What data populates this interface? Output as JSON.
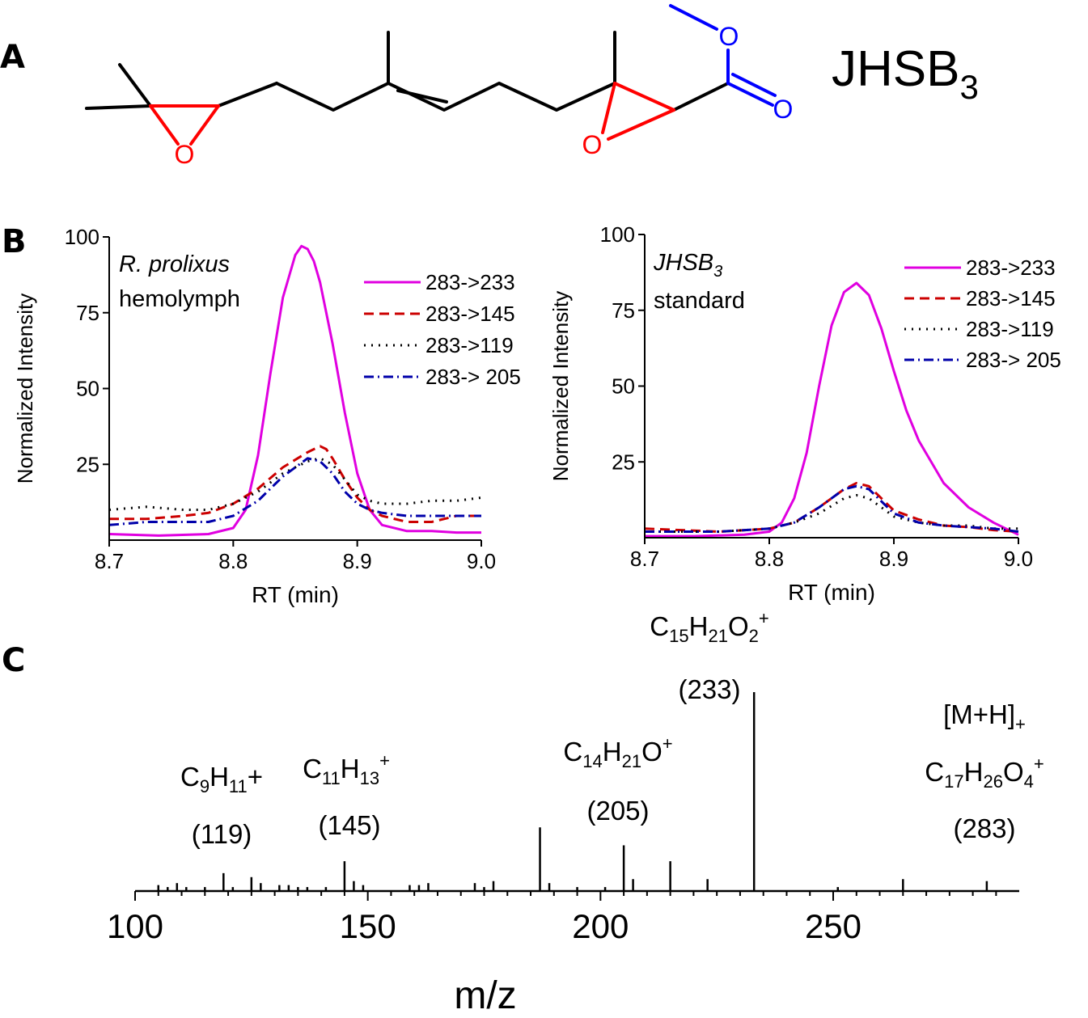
{
  "panels": {
    "a": {
      "letter": "A",
      "compound_name": "JHSB",
      "compound_subscript": "3",
      "atom_labels": [
        "O",
        "O",
        "O",
        "O"
      ],
      "colors": {
        "bonds": "#000000",
        "epoxide": "#ff0000",
        "ester": "#0000ff"
      }
    },
    "b": {
      "letter": "B"
    },
    "c": {
      "letter": "C"
    }
  },
  "chart_data": [
    {
      "id": "hemolymph",
      "type": "line",
      "annotation_line1": "R. prolixus",
      "annotation_line2": "hemolymph",
      "xlabel": "RT (min)",
      "ylabel": "Normalized Intensity",
      "xlim": [
        8.7,
        9.0
      ],
      "ylim": [
        0,
        100
      ],
      "x_ticks": [
        "8.7",
        "8.8",
        "8.9",
        "9.0"
      ],
      "y_ticks": [
        "25",
        "50",
        "75",
        "100"
      ],
      "legend_position": "top-right",
      "series": [
        {
          "name": "283->233",
          "color": "#e000e0",
          "dash": "solid",
          "x": [
            8.7,
            8.74,
            8.78,
            8.8,
            8.81,
            8.82,
            8.83,
            8.84,
            8.85,
            8.855,
            8.86,
            8.865,
            8.87,
            8.88,
            8.89,
            8.9,
            8.91,
            8.92,
            8.94,
            8.96,
            8.98,
            9.0
          ],
          "y": [
            2,
            1.5,
            2,
            4,
            10,
            28,
            55,
            80,
            94,
            97,
            96,
            92,
            85,
            65,
            42,
            22,
            10,
            5,
            3,
            3,
            2.5,
            2.5
          ]
        },
        {
          "name": "283->145",
          "color": "#cc0000",
          "dash": "dashed",
          "x": [
            8.7,
            8.73,
            8.76,
            8.78,
            8.8,
            8.82,
            8.84,
            8.86,
            8.87,
            8.875,
            8.88,
            8.89,
            8.9,
            8.91,
            8.92,
            8.94,
            8.96,
            8.98,
            9.0
          ],
          "y": [
            7,
            7,
            8,
            9,
            12,
            17,
            24,
            29,
            31,
            30,
            27,
            20,
            14,
            10,
            8,
            6,
            6,
            8,
            8
          ]
        },
        {
          "name": "283->119",
          "color": "#000000",
          "dash": "dotted",
          "x": [
            8.7,
            8.73,
            8.76,
            8.78,
            8.8,
            8.82,
            8.84,
            8.86,
            8.87,
            8.88,
            8.89,
            8.9,
            8.91,
            8.92,
            8.94,
            8.96,
            8.98,
            9.0
          ],
          "y": [
            10,
            11,
            10,
            10,
            12,
            16,
            22,
            26,
            27,
            25,
            20,
            15,
            13,
            12,
            12,
            13,
            13,
            14
          ]
        },
        {
          "name": "283-> 205",
          "color": "#0000aa",
          "dash": "dashdot",
          "x": [
            8.7,
            8.73,
            8.76,
            8.78,
            8.8,
            8.82,
            8.84,
            8.86,
            8.87,
            8.88,
            8.89,
            8.9,
            8.91,
            8.92,
            8.94,
            8.96,
            8.98,
            9.0
          ],
          "y": [
            5,
            6,
            6,
            6,
            8,
            13,
            21,
            27,
            26,
            22,
            16,
            12,
            10,
            9,
            8,
            8,
            8,
            8
          ]
        }
      ]
    },
    {
      "id": "standard",
      "type": "line",
      "annotation_line1": "JHSB",
      "annotation_line1_subscript": "3",
      "annotation_line2": "standard",
      "xlabel": "RT (min)",
      "ylabel": "Normalized Intensity",
      "xlim": [
        8.7,
        9.0
      ],
      "ylim": [
        0,
        100
      ],
      "x_ticks": [
        "8.7",
        "8.8",
        "8.9",
        "9.0"
      ],
      "y_ticks": [
        "25",
        "50",
        "75",
        "100"
      ],
      "legend_position": "top-right",
      "series": [
        {
          "name": "283->233",
          "color": "#e000e0",
          "dash": "solid",
          "x": [
            8.7,
            8.74,
            8.78,
            8.8,
            8.81,
            8.82,
            8.83,
            8.84,
            8.85,
            8.86,
            8.87,
            8.88,
            8.89,
            8.9,
            8.91,
            8.92,
            8.93,
            8.94,
            8.96,
            8.98,
            9.0
          ],
          "y": [
            0.5,
            0.5,
            1,
            2,
            5,
            13,
            28,
            50,
            70,
            81,
            84,
            80,
            69,
            55,
            42,
            32,
            25,
            18,
            10,
            5,
            1
          ]
        },
        {
          "name": "283->145",
          "color": "#cc0000",
          "dash": "dashed",
          "x": [
            8.7,
            8.76,
            8.8,
            8.82,
            8.84,
            8.86,
            8.87,
            8.88,
            8.89,
            8.9,
            8.92,
            8.94,
            8.96,
            8.98,
            9.0
          ],
          "y": [
            3,
            2,
            3,
            5,
            10,
            16,
            18,
            17,
            13,
            9,
            6,
            4,
            3.5,
            2.5,
            2
          ]
        },
        {
          "name": "283->119",
          "color": "#000000",
          "dash": "dotted",
          "x": [
            8.7,
            8.76,
            8.8,
            8.82,
            8.84,
            8.86,
            8.87,
            8.88,
            8.89,
            8.9,
            8.92,
            8.94,
            8.96,
            8.98,
            9.0
          ],
          "y": [
            2,
            2,
            3,
            5,
            8,
            13,
            14,
            13,
            10,
            7,
            5,
            4,
            4,
            3,
            3
          ]
        },
        {
          "name": "283-> 205",
          "color": "#0000aa",
          "dash": "dashdot",
          "x": [
            8.7,
            8.76,
            8.8,
            8.82,
            8.84,
            8.86,
            8.87,
            8.88,
            8.89,
            8.9,
            8.92,
            8.94,
            8.96,
            8.98,
            9.0
          ],
          "y": [
            2,
            2,
            3,
            5,
            10,
            16,
            17,
            16,
            12,
            8,
            5,
            4,
            3.5,
            3,
            2
          ]
        }
      ]
    },
    {
      "id": "ms-spectrum",
      "type": "bar",
      "xlabel": "m/z",
      "xlim": [
        100,
        290
      ],
      "ylim": [
        0,
        100
      ],
      "x_ticks": [
        "100",
        "150",
        "200",
        "250"
      ],
      "peaks": [
        {
          "mz": 105,
          "rel": 3
        },
        {
          "mz": 107,
          "rel": 2
        },
        {
          "mz": 109,
          "rel": 4
        },
        {
          "mz": 111,
          "rel": 2
        },
        {
          "mz": 115,
          "rel": 2
        },
        {
          "mz": 119,
          "rel": 9
        },
        {
          "mz": 121,
          "rel": 2
        },
        {
          "mz": 125,
          "rel": 7
        },
        {
          "mz": 127,
          "rel": 4
        },
        {
          "mz": 131,
          "rel": 3
        },
        {
          "mz": 133,
          "rel": 3
        },
        {
          "mz": 135,
          "rel": 2
        },
        {
          "mz": 137,
          "rel": 2
        },
        {
          "mz": 141,
          "rel": 2
        },
        {
          "mz": 145,
          "rel": 15
        },
        {
          "mz": 147,
          "rel": 5
        },
        {
          "mz": 149,
          "rel": 3
        },
        {
          "mz": 159,
          "rel": 3
        },
        {
          "mz": 161,
          "rel": 3
        },
        {
          "mz": 163,
          "rel": 4
        },
        {
          "mz": 173,
          "rel": 4
        },
        {
          "mz": 175,
          "rel": 2
        },
        {
          "mz": 177,
          "rel": 5
        },
        {
          "mz": 187,
          "rel": 32
        },
        {
          "mz": 189,
          "rel": 4
        },
        {
          "mz": 195,
          "rel": 2
        },
        {
          "mz": 201,
          "rel": 2
        },
        {
          "mz": 205,
          "rel": 23
        },
        {
          "mz": 207,
          "rel": 6
        },
        {
          "mz": 215,
          "rel": 15
        },
        {
          "mz": 223,
          "rel": 6
        },
        {
          "mz": 233,
          "rel": 100
        },
        {
          "mz": 251,
          "rel": 2
        },
        {
          "mz": 265,
          "rel": 6
        },
        {
          "mz": 283,
          "rel": 5
        }
      ],
      "annotations": [
        {
          "formula": "C9H11+",
          "mz_label": "(119)"
        },
        {
          "formula": "C11H13+",
          "mz_label": "(145)"
        },
        {
          "formula": "C14H21O+",
          "mz_label": "(205)"
        },
        {
          "formula": "C15H21O2+",
          "mz_label": "(233)"
        },
        {
          "formula": "[M+H]+",
          "formula2": "C17H26O4+",
          "mz_label": "(283)"
        }
      ]
    }
  ]
}
